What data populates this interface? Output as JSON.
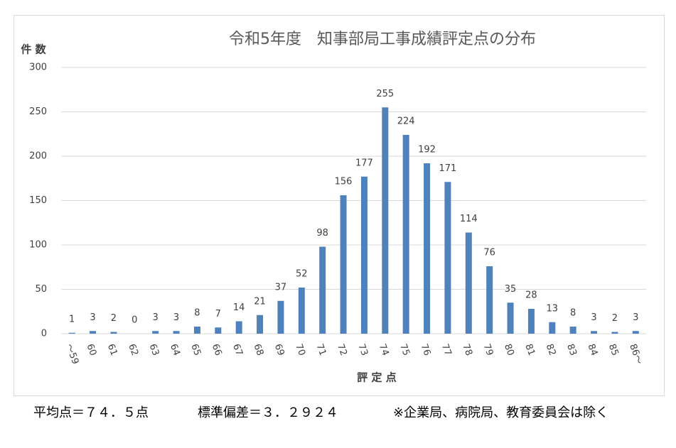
{
  "chart_data": {
    "type": "bar",
    "title": "令和5年度　知事部局工事成績評定点の分布",
    "y_label": "件 数",
    "x_label": "評 定 点",
    "categories": [
      "～59",
      "60",
      "61",
      "62",
      "63",
      "64",
      "65",
      "66",
      "67",
      "68",
      "69",
      "70",
      "71",
      "72",
      "73",
      "74",
      "75",
      "76",
      "77",
      "78",
      "79",
      "80",
      "81",
      "82",
      "83",
      "84",
      "85",
      "86～"
    ],
    "values": [
      1,
      3,
      2,
      0,
      3,
      3,
      8,
      7,
      14,
      21,
      37,
      52,
      98,
      156,
      177,
      255,
      224,
      192,
      171,
      114,
      76,
      35,
      28,
      13,
      8,
      3,
      2,
      3
    ],
    "color": "#4f81bd",
    "ylim": [
      0,
      300
    ],
    "yticks": [
      0,
      50,
      100,
      150,
      200,
      250,
      300
    ],
    "grid": true
  },
  "footer": {
    "mean": "平均点＝７４．５点",
    "sd": "標準偏差＝３．２９２４",
    "note": "※企業局、病院局、教育委員会は除く"
  }
}
